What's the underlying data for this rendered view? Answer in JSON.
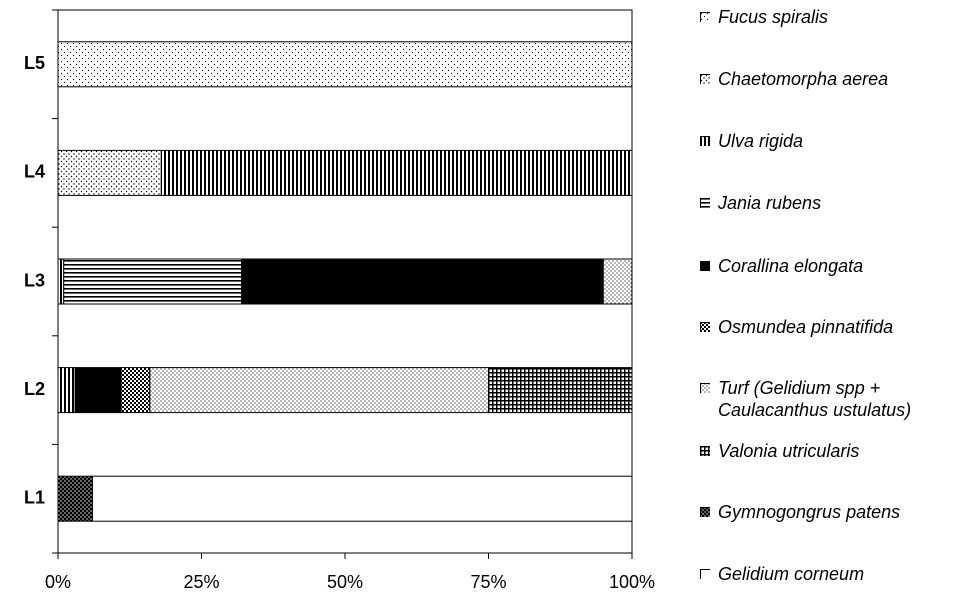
{
  "chart_data": {
    "type": "stacked-barh",
    "categories": [
      "L1",
      "L2",
      "L3",
      "L4",
      "L5"
    ],
    "series": [
      {
        "name": "Fucus spiralis",
        "color": "#ffffff",
        "values": [
          0,
          0,
          0,
          0,
          100
        ]
      },
      {
        "name": "Chaetomorpha aerea",
        "color": "#ffffff",
        "values": [
          0,
          0,
          0,
          18,
          0
        ]
      },
      {
        "name": "Ulva rigida",
        "color": "#000000",
        "values": [
          0,
          3,
          1,
          82,
          0
        ]
      },
      {
        "name": "Jania rubens",
        "color": "#000000",
        "values": [
          0,
          0,
          31,
          0,
          0
        ]
      },
      {
        "name": "Corallina elongata",
        "color": "#000000",
        "values": [
          0,
          8,
          63,
          0,
          0
        ]
      },
      {
        "name": "Osmundea pinnatifida",
        "color": "#000000",
        "values": [
          0,
          5,
          0,
          0,
          0
        ]
      },
      {
        "name": "Turf (Gelidium spp + Caulacanthus ustulatus)",
        "color": "#ffffff",
        "values": [
          0,
          59,
          5,
          0,
          0
        ]
      },
      {
        "name": "Valonia utricularis",
        "color": "#000000",
        "values": [
          0,
          25,
          0,
          0,
          0
        ]
      },
      {
        "name": "Gymnogongrus patens",
        "color": "#000000",
        "values": [
          6,
          0,
          0,
          0,
          0
        ]
      },
      {
        "name": "Gelidium corneum",
        "color": "#ffffff",
        "values": [
          94,
          0,
          0,
          0,
          0
        ]
      }
    ],
    "xlim": [
      0,
      100
    ],
    "xticks": [
      {
        "value": 0,
        "label": "0%"
      },
      {
        "value": 25,
        "label": "25%"
      },
      {
        "value": 50,
        "label": "50%"
      },
      {
        "value": 75,
        "label": "75%"
      },
      {
        "value": 100,
        "label": "100%"
      }
    ]
  }
}
